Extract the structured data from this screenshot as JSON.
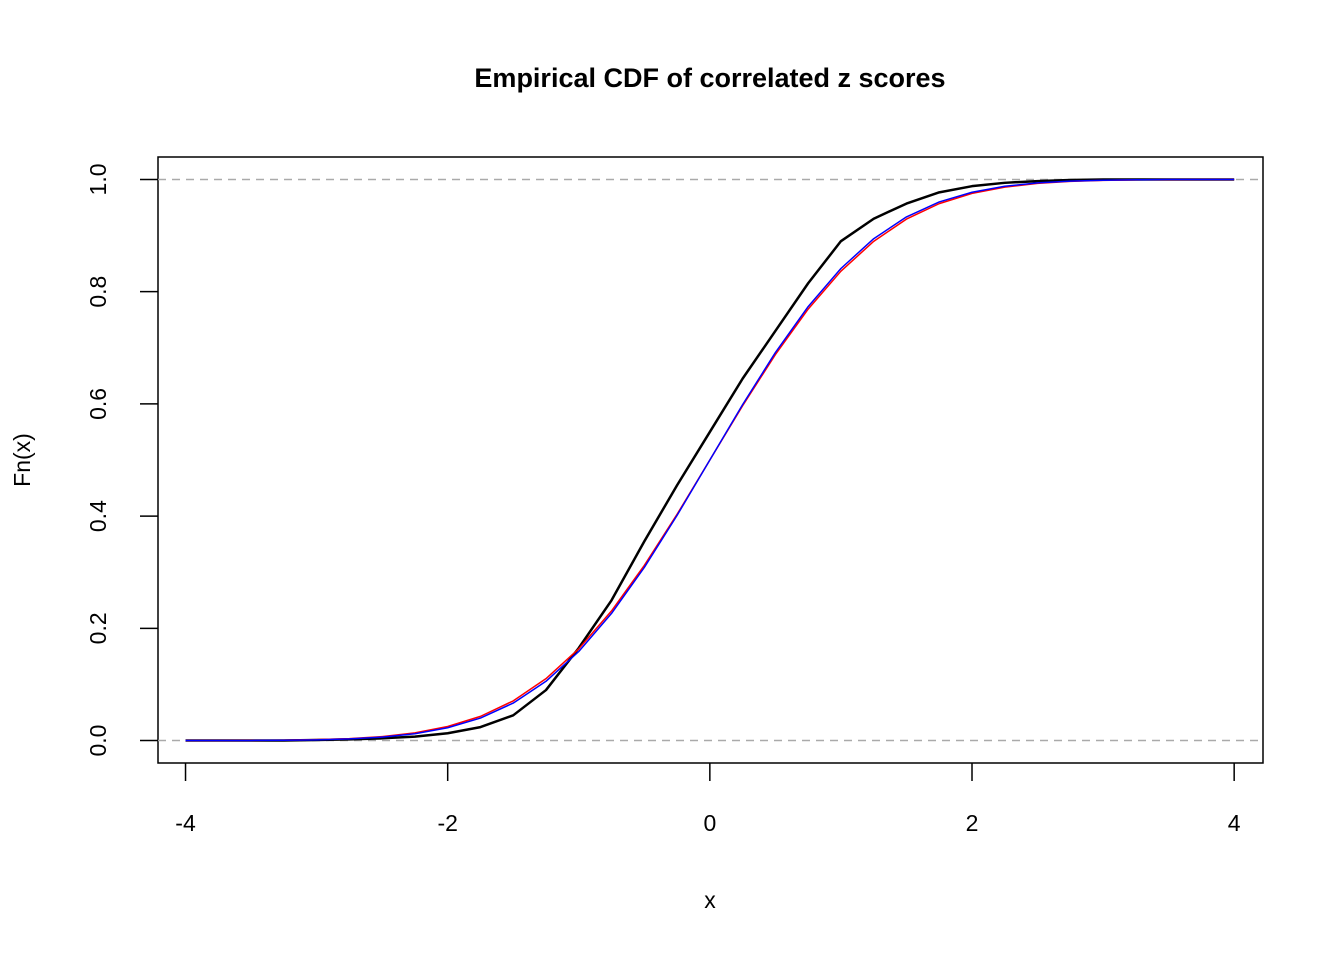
{
  "chart_data": {
    "type": "line",
    "title": "Empirical CDF of correlated z scores",
    "x_label": "x",
    "y_label": "Fn(x)",
    "x": [
      -4,
      -3.75,
      -3.5,
      -3.25,
      -3,
      -2.75,
      -2.5,
      -2.25,
      -2,
      -1.75,
      -1.5,
      -1.25,
      -1,
      -0.75,
      -0.5,
      -0.25,
      0,
      0.25,
      0.5,
      0.75,
      1,
      1.25,
      1.5,
      1.75,
      2,
      2.25,
      2.5,
      2.75,
      3,
      3.25,
      3.5,
      3.75,
      4
    ],
    "series": [
      {
        "color": "#000000",
        "width": 2.5,
        "values": [
          0,
          0,
          0,
          0,
          0.001,
          0.002,
          0.004,
          0.007,
          0.013,
          0.024,
          0.045,
          0.09,
          0.165,
          0.25,
          0.355,
          0.455,
          0.55,
          0.645,
          0.73,
          0.815,
          0.89,
          0.93,
          0.957,
          0.977,
          0.988,
          0.994,
          0.997,
          0.999,
          1,
          1,
          1,
          1,
          1
        ]
      },
      {
        "color": "#ff0000",
        "width": 1.5,
        "values": [
          0,
          0.0001,
          0.0003,
          0.0007,
          0.0016,
          0.0035,
          0.0071,
          0.0137,
          0.025,
          0.0431,
          0.0707,
          0.1103,
          0.1635,
          0.2311,
          0.3121,
          0.4032,
          0.5,
          0.5968,
          0.6879,
          0.7689,
          0.8365,
          0.8897,
          0.9293,
          0.9569,
          0.9751,
          0.9863,
          0.9929,
          0.9965,
          0.9984,
          0.9993,
          0.9997,
          0.9999,
          1
        ]
      },
      {
        "color": "#0000ff",
        "width": 1.5,
        "values": [
          0,
          0.0001,
          0.0002,
          0.0006,
          0.0013,
          0.003,
          0.0062,
          0.0122,
          0.0228,
          0.0401,
          0.0668,
          0.1056,
          0.1587,
          0.2266,
          0.3085,
          0.4013,
          0.5,
          0.5987,
          0.6915,
          0.7734,
          0.8413,
          0.8944,
          0.9332,
          0.9599,
          0.9772,
          0.9878,
          0.9938,
          0.997,
          0.99865,
          0.9994,
          0.9998,
          0.9999,
          1
        ]
      }
    ],
    "reference_lines": [
      0,
      1
    ],
    "xlim": [
      -4.21,
      4.22
    ],
    "ylim": [
      -0.04,
      1.04
    ],
    "xticks": [
      -4,
      -2,
      0,
      2,
      4
    ],
    "yticks": [
      {
        "value": 0,
        "label": "0.0"
      },
      {
        "value": 0.2,
        "label": "0.2"
      },
      {
        "value": 0.4,
        "label": "0.4"
      },
      {
        "value": 0.6,
        "label": "0.6"
      },
      {
        "value": 0.8,
        "label": "0.8"
      },
      {
        "value": 1,
        "label": "1.0"
      }
    ]
  }
}
